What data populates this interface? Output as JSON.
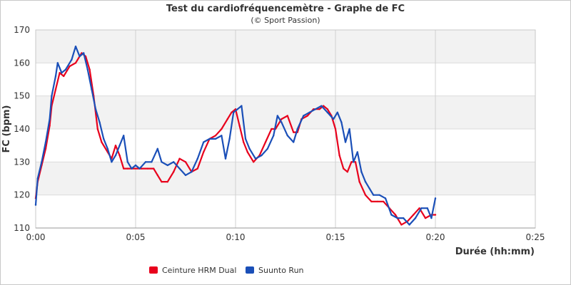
{
  "chart_data": {
    "type": "line",
    "title": "Test du cardiofréquencemètre - Graphe de FC",
    "subtitle": "(© Sport Passion)",
    "xlabel": "Durée (hh:mm)",
    "ylabel": "FC (bpm)",
    "xlim": [
      0,
      25
    ],
    "ylim": [
      110,
      170
    ],
    "x_ticks": [
      {
        "value": 0,
        "label": "0:00"
      },
      {
        "value": 5,
        "label": "0:05"
      },
      {
        "value": 10,
        "label": "0:10"
      },
      {
        "value": 15,
        "label": "0:15"
      },
      {
        "value": 20,
        "label": "0:20"
      },
      {
        "value": 25,
        "label": "0:25"
      }
    ],
    "y_ticks": [
      110,
      120,
      130,
      140,
      150,
      160,
      170
    ],
    "grid": true,
    "alternate_bands": true,
    "legend_position": "bottom-left",
    "series": [
      {
        "name": "Ceinture HRM Dual",
        "color": "#e8001c",
        "x": [
          0,
          0.1,
          0.3,
          0.5,
          0.7,
          0.8,
          1.0,
          1.2,
          1.4,
          1.7,
          2.0,
          2.3,
          2.5,
          2.7,
          2.9,
          3.1,
          3.3,
          3.6,
          3.8,
          4.0,
          4.2,
          4.4,
          4.6,
          4.8,
          5.0,
          5.3,
          5.6,
          5.9,
          6.1,
          6.3,
          6.6,
          6.9,
          7.2,
          7.5,
          7.8,
          8.1,
          8.4,
          8.7,
          9.0,
          9.3,
          9.6,
          9.8,
          10.0,
          10.2,
          10.4,
          10.6,
          10.9,
          11.2,
          11.5,
          11.8,
          12.0,
          12.3,
          12.6,
          12.9,
          13.1,
          13.3,
          13.6,
          13.9,
          14.2,
          14.4,
          14.6,
          14.8,
          15.0,
          15.2,
          15.4,
          15.6,
          15.8,
          16.0,
          16.2,
          16.5,
          16.8,
          17.1,
          17.4,
          17.7,
          18.0,
          18.3,
          18.6,
          18.9,
          19.2,
          19.5,
          19.8,
          20.0
        ],
        "values": [
          119,
          124,
          129,
          134,
          141,
          147,
          152,
          157,
          156,
          159,
          160,
          163,
          162,
          158,
          150,
          140,
          136,
          133,
          131,
          135,
          132,
          128,
          128,
          128,
          128,
          128,
          128,
          128,
          126,
          124,
          124,
          127,
          131,
          130,
          127,
          128,
          133,
          137,
          138,
          140,
          143,
          145,
          146,
          141,
          136,
          133,
          130,
          132,
          136,
          140,
          140,
          143,
          144,
          139,
          139,
          143,
          144,
          146,
          146,
          147,
          146,
          144,
          140,
          132,
          128,
          127,
          130,
          130,
          124,
          120,
          118,
          118,
          118,
          116,
          114,
          111,
          112,
          114,
          116,
          113,
          114,
          114
        ]
      },
      {
        "name": "Suunto Run",
        "color": "#1a4fb8",
        "x": [
          0,
          0.1,
          0.3,
          0.5,
          0.7,
          0.8,
          1.0,
          1.1,
          1.3,
          1.5,
          1.8,
          2.0,
          2.2,
          2.4,
          2.6,
          2.8,
          3.0,
          3.2,
          3.4,
          3.6,
          3.8,
          4.0,
          4.2,
          4.4,
          4.6,
          4.8,
          5.0,
          5.2,
          5.5,
          5.8,
          6.1,
          6.3,
          6.6,
          6.9,
          7.2,
          7.5,
          7.8,
          8.1,
          8.4,
          8.7,
          9.0,
          9.3,
          9.5,
          9.7,
          9.9,
          10.1,
          10.3,
          10.5,
          10.7,
          11.0,
          11.3,
          11.6,
          11.9,
          12.1,
          12.3,
          12.6,
          12.9,
          13.1,
          13.4,
          13.7,
          14.0,
          14.3,
          14.6,
          14.9,
          15.1,
          15.3,
          15.5,
          15.7,
          15.9,
          16.1,
          16.3,
          16.5,
          16.7,
          16.9,
          17.2,
          17.5,
          17.8,
          18.1,
          18.4,
          18.7,
          19.0,
          19.3,
          19.6,
          19.8,
          20.0
        ],
        "values": [
          117,
          125,
          130,
          136,
          143,
          150,
          156,
          160,
          157,
          158,
          161,
          165,
          162,
          163,
          158,
          152,
          146,
          142,
          137,
          134,
          130,
          132,
          135,
          138,
          130,
          128,
          129,
          128,
          130,
          130,
          134,
          130,
          129,
          130,
          128,
          126,
          127,
          131,
          136,
          137,
          137,
          138,
          131,
          137,
          145,
          146,
          147,
          137,
          134,
          131,
          132,
          134,
          138,
          144,
          142,
          138,
          136,
          140,
          144,
          145,
          146,
          147,
          145,
          143,
          145,
          142,
          136,
          140,
          130,
          133,
          127,
          124,
          122,
          120,
          120,
          119,
          114,
          113,
          113,
          111,
          113,
          116,
          116,
          113,
          119
        ]
      }
    ]
  }
}
